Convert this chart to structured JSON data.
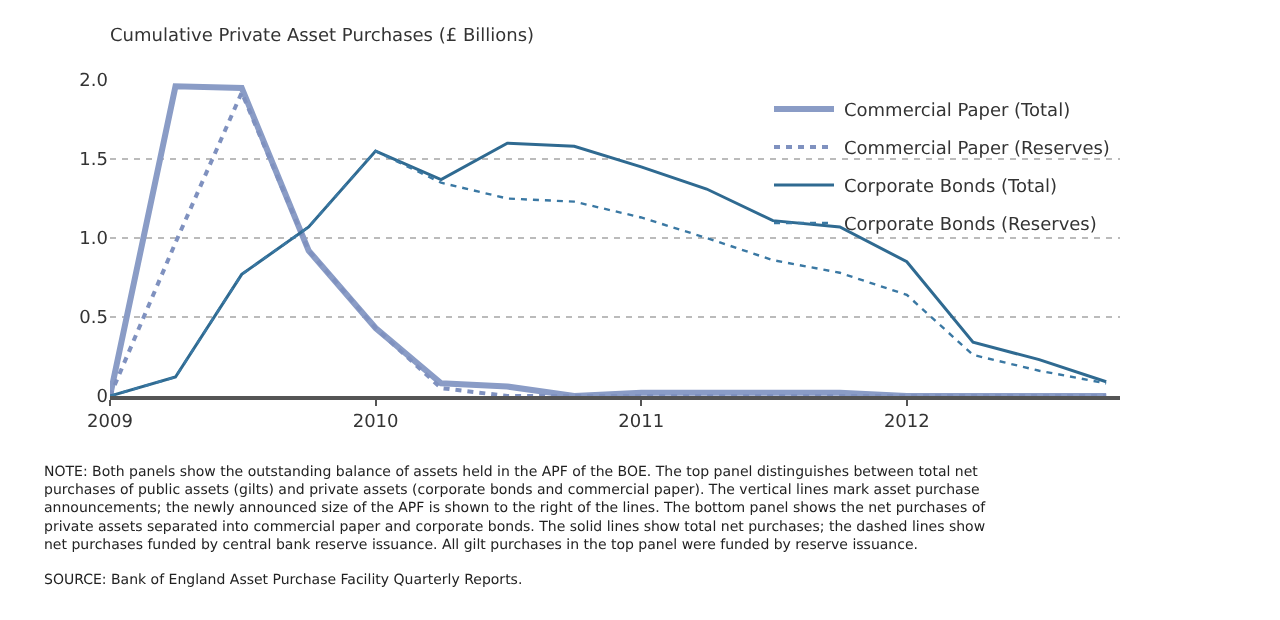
{
  "chart_data": {
    "type": "line",
    "title": "Cumulative Private Asset Purchases (£ Billions)",
    "x": [
      "2009-01",
      "2009-04",
      "2009-07",
      "2009-10",
      "2010-01",
      "2010-04",
      "2010-07",
      "2010-10",
      "2011-01",
      "2011-04",
      "2011-07",
      "2011-10",
      "2012-01",
      "2012-04",
      "2012-07",
      "2012-10"
    ],
    "series": [
      {
        "name": "Commercial Paper (Total)",
        "color": "#8a9cc6",
        "line_style": "solid",
        "values": [
          0,
          1.96,
          1.95,
          0.92,
          0.43,
          0.08,
          0.06,
          0.0,
          0.02,
          0.02,
          0.02,
          0.02,
          0.0,
          0.0,
          0.0,
          0.0
        ]
      },
      {
        "name": "Commercial Paper (Reserves)",
        "color": "#7f91bf",
        "line_style": "dotted",
        "values": [
          0,
          0.97,
          1.92,
          0.92,
          0.43,
          0.05,
          0.0,
          0.0,
          0.0,
          0.0,
          0.0,
          0.0,
          0.0,
          0.0,
          0.0,
          0.0
        ]
      },
      {
        "name": "Corporate Bonds (Total)",
        "color": "#2f6a91",
        "line_style": "solid",
        "values": [
          0,
          0.12,
          0.77,
          1.07,
          1.55,
          1.37,
          1.6,
          1.58,
          1.45,
          1.31,
          1.11,
          1.07,
          0.85,
          0.34,
          0.23,
          0.09
        ]
      },
      {
        "name": "Corporate Bonds (Reserves)",
        "color": "#3a78a3",
        "line_style": "dotted",
        "values": [
          0,
          0.12,
          0.77,
          1.07,
          1.55,
          1.35,
          1.25,
          1.23,
          1.13,
          1.0,
          0.86,
          0.78,
          0.64,
          0.26,
          0.16,
          0.08
        ]
      }
    ],
    "xlim": [
      "2009-01-01",
      "2012-10-20"
    ],
    "xticks": [
      {
        "value": "2009-01-01",
        "label": "2009"
      },
      {
        "value": "2010-01-01",
        "label": "2010"
      },
      {
        "value": "2011-01-01",
        "label": "2011"
      },
      {
        "value": "2012-01-01",
        "label": "2012"
      }
    ],
    "ylim": [
      0,
      2.0
    ],
    "yticks": [
      {
        "value": 0,
        "label": "0"
      },
      {
        "value": 0.5,
        "label": "0.5"
      },
      {
        "value": 1.0,
        "label": "1.0"
      },
      {
        "value": 1.5,
        "label": "1.5"
      },
      {
        "value": 2.0,
        "label": "2.0"
      }
    ],
    "grid": "y",
    "legend": "top right",
    "marker": "none",
    "annotations": [
      "NOTE: Both panels show the outstanding balance of assets held in the APF of the BOE. The top panel distinguishes between total net purchases of public assets (gilts) and private assets (corporate bonds and commercial paper). The vertical lines mark asset purchase announcements; the newly announced size of the APF is shown to the right of the lines. The bottom panel shows the net purchases of private assets separated into commercial paper and corporate bonds. The solid lines show total net purchases; the dashed lines show net purchases funded by central bank reserve issuance. All gilt purchases in the top panel were funded by reserve issuance.",
      "SOURCE: Bank of England Asset Purchase Facility Quarterly Reports."
    ]
  }
}
